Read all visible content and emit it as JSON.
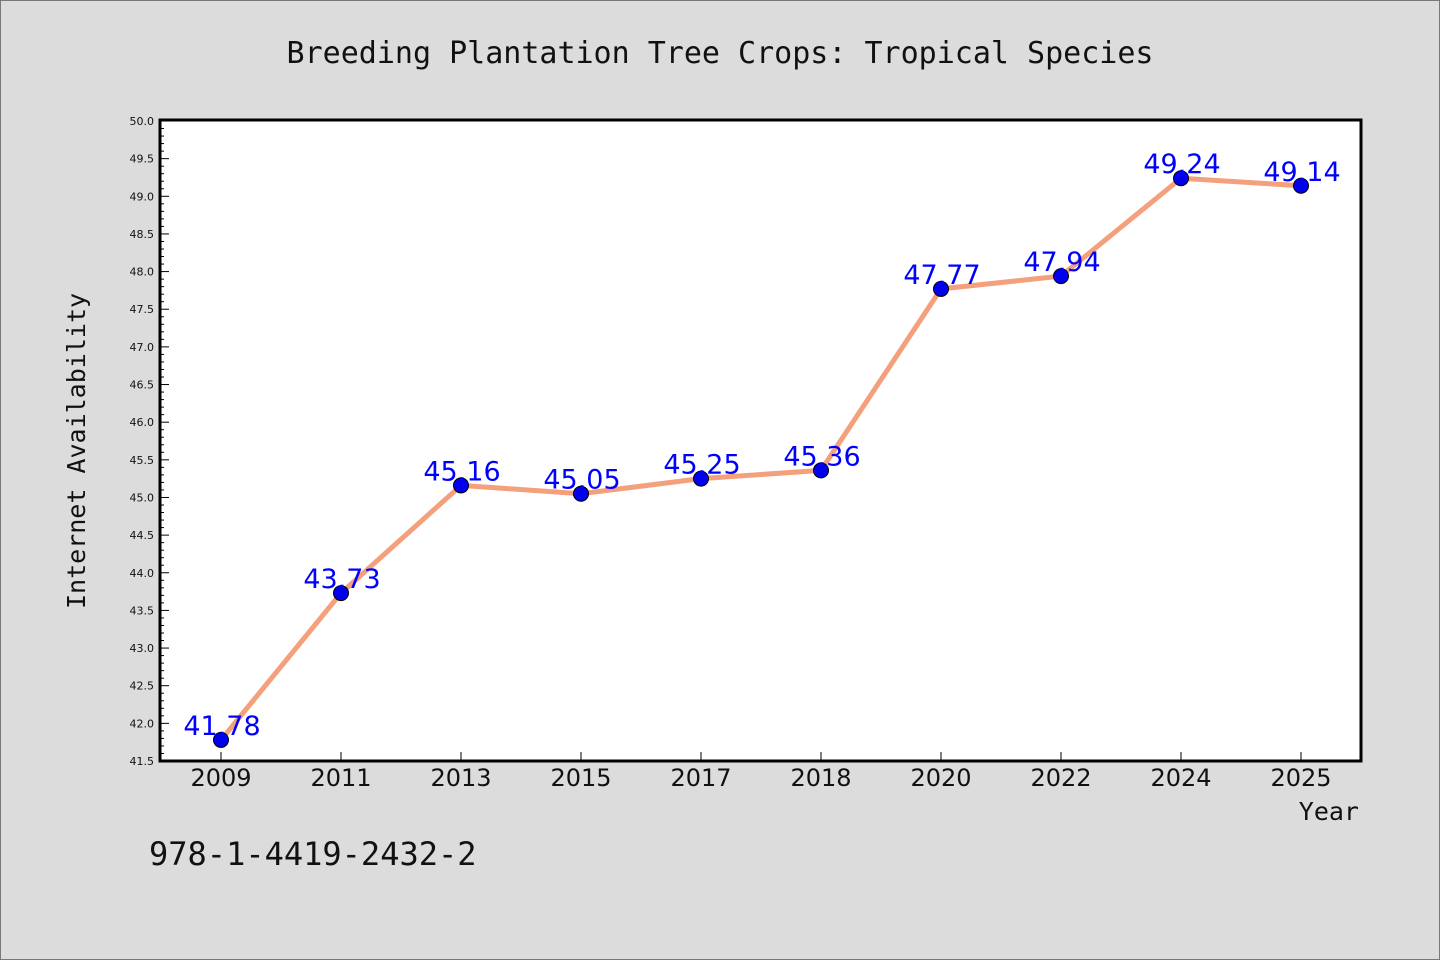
{
  "chart_data": {
    "type": "line",
    "title": "Breeding Plantation Tree Crops: Tropical Species",
    "xlabel": "Year",
    "ylabel": "Internet Availability",
    "categories": [
      "2009",
      "2011",
      "2013",
      "2015",
      "2017",
      "2018",
      "2020",
      "2022",
      "2024",
      "2025"
    ],
    "values": [
      41.78,
      43.73,
      45.16,
      45.05,
      45.25,
      45.36,
      47.77,
      47.94,
      49.24,
      49.14
    ],
    "value_labels": [
      "41.78",
      "43.73",
      "45.16",
      "45.05",
      "45.25",
      "45.36",
      "47.77",
      "47.94",
      "49.24",
      "49.14"
    ],
    "ylim": [
      41.5,
      50.0
    ],
    "yticks": [
      "41.5",
      "42.0",
      "42.5",
      "43.0",
      "43.5",
      "44.0",
      "44.5",
      "45.0",
      "45.5",
      "46.0",
      "46.5",
      "47.0",
      "47.5",
      "48.0",
      "48.5",
      "49.0",
      "49.5",
      "50.0"
    ],
    "grid": false,
    "line_color": "#f4a07c",
    "marker_color": "#0000ee",
    "label_color": "#0000ff",
    "background_color": "#dcdcdc",
    "plot_background_color": "#ffffff"
  },
  "footnote": "978-1-4419-2432-2"
}
